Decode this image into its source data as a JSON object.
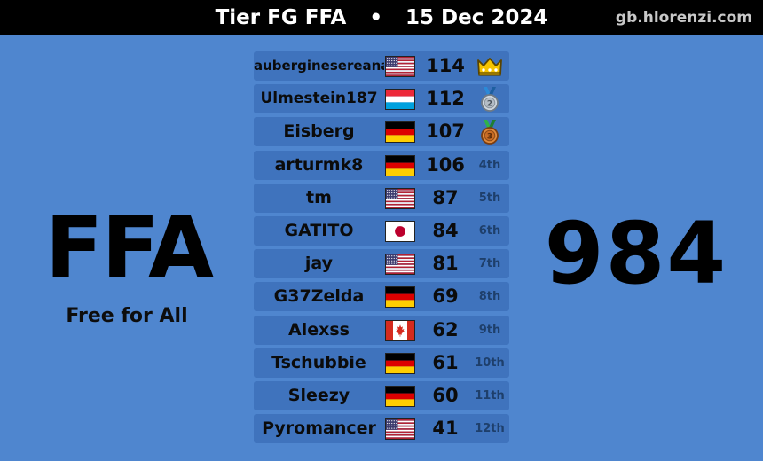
{
  "header": {
    "title": "Tier FG FFA",
    "separator": "•",
    "date": "15 Dec 2024",
    "site": "gb.hlorenzi.com"
  },
  "mode": {
    "abbr": "FFA",
    "name": "Free for All"
  },
  "total_points": "984",
  "colors": {
    "background": "#4f86cf",
    "row": "#3f73bd",
    "topbar": "#000000",
    "place_text": "#1e3f6b"
  },
  "players": [
    {
      "name": "auberginesereana",
      "flag": "us",
      "score": "114",
      "place": "",
      "award": "crown-icon"
    },
    {
      "name": "Ulmestein187",
      "flag": "lu",
      "score": "112",
      "place": "",
      "award": "silver-medal-icon"
    },
    {
      "name": "Eisberg",
      "flag": "de",
      "score": "107",
      "place": "",
      "award": "bronze-medal-icon"
    },
    {
      "name": "arturmk8",
      "flag": "de",
      "score": "106",
      "place": "4th",
      "award": ""
    },
    {
      "name": "tm",
      "flag": "us",
      "score": "87",
      "place": "5th",
      "award": ""
    },
    {
      "name": "GATITO",
      "flag": "jp",
      "score": "84",
      "place": "6th",
      "award": ""
    },
    {
      "name": "jay",
      "flag": "us",
      "score": "81",
      "place": "7th",
      "award": ""
    },
    {
      "name": "G37Zelda",
      "flag": "de",
      "score": "69",
      "place": "8th",
      "award": ""
    },
    {
      "name": "Alexss",
      "flag": "ca",
      "score": "62",
      "place": "9th",
      "award": ""
    },
    {
      "name": "Tschubbie",
      "flag": "de",
      "score": "61",
      "place": "10th",
      "award": ""
    },
    {
      "name": "Sleezy",
      "flag": "de",
      "score": "60",
      "place": "11th",
      "award": ""
    },
    {
      "name": "Pyromancer",
      "flag": "us",
      "score": "41",
      "place": "12th",
      "award": ""
    }
  ]
}
